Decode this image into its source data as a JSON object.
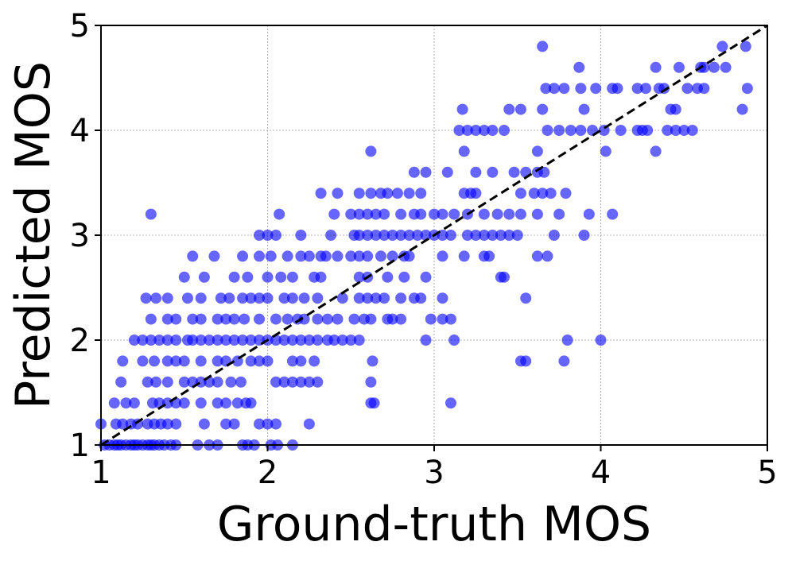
{
  "chart_data": {
    "type": "scatter",
    "title": "",
    "xlabel": "Ground-truth MOS",
    "ylabel": "Predicted MOS",
    "xlim": [
      1,
      5
    ],
    "ylim": [
      1,
      5
    ],
    "xticks": [
      "1",
      "2",
      "3",
      "4",
      "5"
    ],
    "yticks": [
      "1",
      "2",
      "3",
      "4",
      "5"
    ],
    "grid": true,
    "point_color": "#0000ff",
    "reference_line": {
      "from": [
        1,
        1
      ],
      "to": [
        5,
        5
      ],
      "style": "dashed",
      "color": "#000000"
    },
    "points": [
      [
        1.0,
        1.2
      ],
      [
        1.02,
        1.0
      ],
      [
        1.05,
        1.0
      ],
      [
        1.08,
        1.0
      ],
      [
        1.1,
        1.0
      ],
      [
        1.12,
        1.0
      ],
      [
        1.15,
        1.0
      ],
      [
        1.18,
        1.0
      ],
      [
        1.2,
        1.0
      ],
      [
        1.22,
        1.0
      ],
      [
        1.25,
        1.0
      ],
      [
        1.28,
        1.0
      ],
      [
        1.3,
        1.0
      ],
      [
        1.32,
        1.0
      ],
      [
        1.35,
        1.0
      ],
      [
        1.38,
        1.0
      ],
      [
        1.42,
        1.0
      ],
      [
        1.45,
        1.0
      ],
      [
        1.58,
        1.0
      ],
      [
        1.65,
        1.0
      ],
      [
        1.7,
        1.0
      ],
      [
        1.85,
        1.0
      ],
      [
        1.88,
        1.0
      ],
      [
        1.92,
        1.0
      ],
      [
        2.02,
        1.0
      ],
      [
        2.06,
        1.0
      ],
      [
        2.15,
        1.0
      ],
      [
        1.09,
        1.2
      ],
      [
        1.13,
        1.2
      ],
      [
        1.18,
        1.2
      ],
      [
        1.22,
        1.2
      ],
      [
        1.28,
        1.2
      ],
      [
        1.32,
        1.2
      ],
      [
        1.36,
        1.2
      ],
      [
        1.4,
        1.2
      ],
      [
        1.45,
        1.2
      ],
      [
        1.62,
        1.2
      ],
      [
        1.75,
        1.2
      ],
      [
        1.8,
        1.2
      ],
      [
        1.95,
        1.2
      ],
      [
        2.0,
        1.2
      ],
      [
        2.05,
        1.2
      ],
      [
        2.25,
        1.2
      ],
      [
        1.08,
        1.4
      ],
      [
        1.15,
        1.4
      ],
      [
        1.2,
        1.4
      ],
      [
        1.31,
        1.4
      ],
      [
        1.35,
        1.4
      ],
      [
        1.4,
        1.4
      ],
      [
        1.45,
        1.4
      ],
      [
        1.5,
        1.4
      ],
      [
        1.6,
        1.4
      ],
      [
        1.7,
        1.4
      ],
      [
        1.75,
        1.4
      ],
      [
        1.82,
        1.4
      ],
      [
        1.87,
        1.4
      ],
      [
        1.9,
        1.4
      ],
      [
        2.62,
        1.4
      ],
      [
        2.64,
        1.4
      ],
      [
        3.1,
        1.4
      ],
      [
        1.12,
        1.6
      ],
      [
        1.28,
        1.6
      ],
      [
        1.33,
        1.6
      ],
      [
        1.4,
        1.6
      ],
      [
        1.5,
        1.6
      ],
      [
        1.55,
        1.6
      ],
      [
        1.6,
        1.6
      ],
      [
        1.65,
        1.6
      ],
      [
        1.7,
        1.6
      ],
      [
        1.78,
        1.6
      ],
      [
        1.84,
        1.6
      ],
      [
        2.05,
        1.6
      ],
      [
        2.1,
        1.6
      ],
      [
        2.15,
        1.6
      ],
      [
        2.2,
        1.6
      ],
      [
        2.25,
        1.6
      ],
      [
        2.3,
        1.6
      ],
      [
        2.62,
        1.6
      ],
      [
        1.13,
        1.8
      ],
      [
        1.25,
        1.8
      ],
      [
        1.32,
        1.8
      ],
      [
        1.4,
        1.8
      ],
      [
        1.45,
        1.8
      ],
      [
        1.5,
        1.8
      ],
      [
        1.6,
        1.8
      ],
      [
        1.7,
        1.8
      ],
      [
        1.75,
        1.8
      ],
      [
        1.82,
        1.8
      ],
      [
        1.9,
        1.8
      ],
      [
        1.95,
        1.8
      ],
      [
        2.0,
        1.8
      ],
      [
        2.15,
        1.8
      ],
      [
        2.2,
        1.8
      ],
      [
        2.28,
        1.8
      ],
      [
        2.63,
        1.8
      ],
      [
        3.52,
        1.8
      ],
      [
        3.55,
        1.8
      ],
      [
        3.78,
        1.8
      ],
      [
        1.2,
        2.0
      ],
      [
        1.25,
        2.0
      ],
      [
        1.3,
        2.0
      ],
      [
        1.35,
        2.0
      ],
      [
        1.4,
        2.0
      ],
      [
        1.45,
        2.0
      ],
      [
        1.52,
        2.0
      ],
      [
        1.55,
        2.0
      ],
      [
        1.6,
        2.0
      ],
      [
        1.65,
        2.0
      ],
      [
        1.7,
        2.0
      ],
      [
        1.75,
        2.0
      ],
      [
        1.8,
        2.0
      ],
      [
        1.85,
        2.0
      ],
      [
        1.9,
        2.0
      ],
      [
        1.95,
        2.0
      ],
      [
        2.0,
        2.0
      ],
      [
        2.05,
        2.0
      ],
      [
        2.1,
        2.0
      ],
      [
        2.15,
        2.0
      ],
      [
        2.2,
        2.0
      ],
      [
        2.25,
        2.0
      ],
      [
        2.3,
        2.0
      ],
      [
        2.36,
        2.0
      ],
      [
        2.4,
        2.0
      ],
      [
        2.45,
        2.0
      ],
      [
        2.5,
        2.0
      ],
      [
        2.55,
        2.0
      ],
      [
        2.95,
        2.0
      ],
      [
        3.12,
        2.0
      ],
      [
        3.8,
        2.0
      ],
      [
        4.0,
        2.0
      ],
      [
        1.3,
        2.2
      ],
      [
        1.4,
        2.2
      ],
      [
        1.45,
        2.2
      ],
      [
        1.55,
        2.2
      ],
      [
        1.6,
        2.2
      ],
      [
        1.7,
        2.2
      ],
      [
        1.75,
        2.2
      ],
      [
        1.8,
        2.2
      ],
      [
        1.86,
        2.2
      ],
      [
        1.95,
        2.2
      ],
      [
        2.05,
        2.2
      ],
      [
        2.12,
        2.2
      ],
      [
        2.18,
        2.2
      ],
      [
        2.22,
        2.2
      ],
      [
        2.3,
        2.2
      ],
      [
        2.36,
        2.2
      ],
      [
        2.42,
        2.2
      ],
      [
        2.52,
        2.2
      ],
      [
        2.58,
        2.2
      ],
      [
        2.62,
        2.2
      ],
      [
        2.72,
        2.2
      ],
      [
        2.75,
        2.2
      ],
      [
        2.8,
        2.2
      ],
      [
        2.98,
        2.2
      ],
      [
        3.05,
        2.2
      ],
      [
        3.1,
        2.2
      ],
      [
        1.27,
        2.4
      ],
      [
        1.33,
        2.4
      ],
      [
        1.4,
        2.4
      ],
      [
        1.52,
        2.4
      ],
      [
        1.6,
        2.4
      ],
      [
        1.72,
        2.4
      ],
      [
        1.77,
        2.4
      ],
      [
        1.85,
        2.4
      ],
      [
        1.9,
        2.4
      ],
      [
        1.95,
        2.4
      ],
      [
        2.0,
        2.4
      ],
      [
        2.1,
        2.4
      ],
      [
        2.15,
        2.4
      ],
      [
        2.22,
        2.4
      ],
      [
        2.3,
        2.4
      ],
      [
        2.45,
        2.4
      ],
      [
        2.55,
        2.4
      ],
      [
        2.6,
        2.4
      ],
      [
        2.65,
        2.4
      ],
      [
        2.7,
        2.4
      ],
      [
        2.8,
        2.4
      ],
      [
        2.88,
        2.4
      ],
      [
        2.92,
        2.4
      ],
      [
        3.05,
        2.4
      ],
      [
        3.55,
        2.4
      ],
      [
        1.5,
        2.6
      ],
      [
        1.62,
        2.6
      ],
      [
        1.8,
        2.6
      ],
      [
        1.88,
        2.6
      ],
      [
        2.0,
        2.6
      ],
      [
        2.08,
        2.6
      ],
      [
        2.15,
        2.6
      ],
      [
        2.28,
        2.6
      ],
      [
        2.32,
        2.6
      ],
      [
        2.55,
        2.6
      ],
      [
        2.6,
        2.6
      ],
      [
        2.72,
        2.6
      ],
      [
        2.82,
        2.6
      ],
      [
        2.95,
        2.6
      ],
      [
        3.4,
        2.6
      ],
      [
        3.42,
        2.6
      ],
      [
        1.55,
        2.8
      ],
      [
        1.68,
        2.8
      ],
      [
        1.85,
        2.8
      ],
      [
        1.95,
        2.8
      ],
      [
        2.02,
        2.8
      ],
      [
        2.12,
        2.8
      ],
      [
        2.2,
        2.8
      ],
      [
        2.25,
        2.8
      ],
      [
        2.32,
        2.8
      ],
      [
        2.35,
        2.8
      ],
      [
        2.42,
        2.8
      ],
      [
        2.5,
        2.8
      ],
      [
        2.55,
        2.8
      ],
      [
        2.6,
        2.8
      ],
      [
        2.68,
        2.8
      ],
      [
        2.75,
        2.8
      ],
      [
        2.82,
        2.8
      ],
      [
        2.85,
        2.8
      ],
      [
        3.05,
        2.8
      ],
      [
        3.18,
        2.8
      ],
      [
        3.3,
        2.8
      ],
      [
        3.33,
        2.8
      ],
      [
        3.62,
        2.8
      ],
      [
        3.68,
        2.8
      ],
      [
        1.95,
        3.0
      ],
      [
        2.0,
        3.0
      ],
      [
        2.05,
        3.0
      ],
      [
        2.2,
        3.0
      ],
      [
        2.38,
        3.0
      ],
      [
        2.52,
        3.0
      ],
      [
        2.55,
        3.0
      ],
      [
        2.6,
        3.0
      ],
      [
        2.65,
        3.0
      ],
      [
        2.7,
        3.0
      ],
      [
        2.75,
        3.0
      ],
      [
        2.8,
        3.0
      ],
      [
        2.85,
        3.0
      ],
      [
        2.9,
        3.0
      ],
      [
        2.95,
        3.0
      ],
      [
        3.0,
        3.0
      ],
      [
        3.05,
        3.0
      ],
      [
        3.1,
        3.0
      ],
      [
        3.2,
        3.0
      ],
      [
        3.25,
        3.0
      ],
      [
        3.3,
        3.0
      ],
      [
        3.35,
        3.0
      ],
      [
        3.4,
        3.0
      ],
      [
        3.45,
        3.0
      ],
      [
        3.5,
        3.0
      ],
      [
        3.72,
        3.0
      ],
      [
        3.9,
        3.0
      ],
      [
        1.3,
        3.2
      ],
      [
        2.07,
        3.2
      ],
      [
        2.4,
        3.2
      ],
      [
        2.5,
        3.2
      ],
      [
        2.55,
        3.2
      ],
      [
        2.6,
        3.2
      ],
      [
        2.65,
        3.2
      ],
      [
        2.7,
        3.2
      ],
      [
        2.8,
        3.2
      ],
      [
        2.88,
        3.2
      ],
      [
        2.92,
        3.2
      ],
      [
        3.0,
        3.2
      ],
      [
        3.05,
        3.2
      ],
      [
        3.12,
        3.2
      ],
      [
        3.2,
        3.2
      ],
      [
        3.3,
        3.2
      ],
      [
        3.38,
        3.2
      ],
      [
        3.45,
        3.2
      ],
      [
        3.52,
        3.2
      ],
      [
        3.62,
        3.2
      ],
      [
        3.75,
        3.2
      ],
      [
        3.93,
        3.2
      ],
      [
        4.07,
        3.2
      ],
      [
        2.32,
        3.4
      ],
      [
        2.42,
        3.4
      ],
      [
        2.55,
        3.4
      ],
      [
        2.62,
        3.4
      ],
      [
        2.68,
        3.4
      ],
      [
        2.72,
        3.4
      ],
      [
        2.78,
        3.4
      ],
      [
        2.85,
        3.4
      ],
      [
        2.92,
        3.4
      ],
      [
        3.18,
        3.4
      ],
      [
        3.22,
        3.4
      ],
      [
        3.25,
        3.4
      ],
      [
        3.52,
        3.4
      ],
      [
        3.6,
        3.4
      ],
      [
        3.65,
        3.4
      ],
      [
        3.7,
        3.4
      ],
      [
        3.79,
        3.4
      ],
      [
        2.88,
        3.6
      ],
      [
        2.95,
        3.6
      ],
      [
        3.08,
        3.6
      ],
      [
        3.25,
        3.6
      ],
      [
        3.35,
        3.6
      ],
      [
        3.48,
        3.6
      ],
      [
        3.55,
        3.6
      ],
      [
        3.62,
        3.6
      ],
      [
        3.66,
        3.6
      ],
      [
        2.62,
        3.8
      ],
      [
        3.18,
        3.8
      ],
      [
        3.62,
        3.8
      ],
      [
        4.03,
        3.8
      ],
      [
        4.33,
        3.8
      ],
      [
        3.15,
        4.0
      ],
      [
        3.2,
        4.0
      ],
      [
        3.25,
        4.0
      ],
      [
        3.3,
        4.0
      ],
      [
        3.35,
        4.0
      ],
      [
        3.42,
        4.0
      ],
      [
        3.68,
        4.0
      ],
      [
        3.75,
        4.0
      ],
      [
        3.82,
        4.0
      ],
      [
        3.88,
        4.0
      ],
      [
        3.95,
        4.0
      ],
      [
        4.02,
        4.0
      ],
      [
        4.12,
        4.0
      ],
      [
        4.22,
        4.0
      ],
      [
        4.25,
        4.0
      ],
      [
        4.28,
        4.0
      ],
      [
        4.4,
        4.0
      ],
      [
        4.45,
        4.0
      ],
      [
        4.5,
        4.0
      ],
      [
        4.55,
        4.0
      ],
      [
        3.17,
        4.2
      ],
      [
        3.45,
        4.2
      ],
      [
        3.52,
        4.2
      ],
      [
        3.65,
        4.2
      ],
      [
        3.9,
        4.2
      ],
      [
        4.42,
        4.2
      ],
      [
        4.45,
        4.2
      ],
      [
        4.85,
        4.2
      ],
      [
        3.67,
        4.4
      ],
      [
        3.72,
        4.4
      ],
      [
        3.78,
        4.4
      ],
      [
        3.88,
        4.4
      ],
      [
        3.97,
        4.4
      ],
      [
        4.07,
        4.4
      ],
      [
        4.1,
        4.4
      ],
      [
        4.22,
        4.4
      ],
      [
        4.27,
        4.4
      ],
      [
        4.35,
        4.4
      ],
      [
        4.38,
        4.4
      ],
      [
        4.52,
        4.4
      ],
      [
        4.58,
        4.4
      ],
      [
        4.62,
        4.4
      ],
      [
        4.88,
        4.4
      ],
      [
        3.87,
        4.6
      ],
      [
        4.33,
        4.6
      ],
      [
        4.47,
        4.6
      ],
      [
        4.6,
        4.6
      ],
      [
        4.62,
        4.6
      ],
      [
        4.68,
        4.6
      ],
      [
        4.75,
        4.6
      ],
      [
        3.65,
        4.8
      ],
      [
        4.73,
        4.8
      ],
      [
        4.87,
        4.8
      ]
    ]
  }
}
